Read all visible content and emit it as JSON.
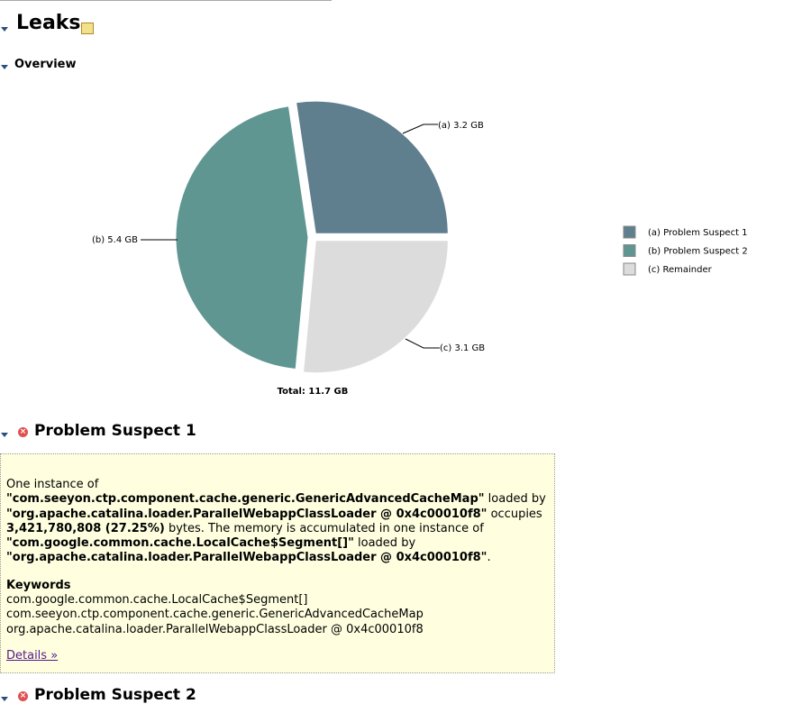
{
  "title": "Leaks",
  "overview_title": "Overview",
  "chart_data": {
    "type": "pie",
    "categories": [
      "(a)  Problem Suspect 1",
      "(b)  Problem Suspect 2",
      "(c)  Remainder"
    ],
    "values": [
      3.2,
      5.4,
      3.1
    ],
    "value_labels": [
      "(a)  3.2 GB",
      "(b)  5.4 GB",
      "(c)  3.1 GB"
    ],
    "colors": [
      "#5f7e8e",
      "#5f9692",
      "#dcdcdc"
    ],
    "total_label": "Total: 11.7 GB"
  },
  "suspects": [
    {
      "title": "Problem Suspect 1",
      "description": [
        {
          "text": "One instance of ",
          "bold": false
        },
        {
          "text": "\"com.seeyon.ctp.component.cache.generic.GenericAdvancedCacheMap\"",
          "bold": true
        },
        {
          "text": " loaded by ",
          "bold": false
        },
        {
          "text": "\"org.apache.catalina.loader.ParallelWebappClassLoader @ 0x4c00010f8\"",
          "bold": true
        },
        {
          "text": " occupies ",
          "bold": false
        },
        {
          "text": "3,421,780,808 (27.25%)",
          "bold": true
        },
        {
          "text": " bytes. The memory is accumulated in one instance of ",
          "bold": false
        },
        {
          "text": "\"com.google.common.cache.LocalCache$Segment[]\"",
          "bold": true
        },
        {
          "text": " loaded by ",
          "bold": false
        },
        {
          "text": "\"org.apache.catalina.loader.ParallelWebappClassLoader @ 0x4c00010f8\"",
          "bold": true
        },
        {
          "text": ".",
          "bold": false
        }
      ],
      "keywords_title": "Keywords",
      "keywords": [
        "com.google.common.cache.LocalCache$Segment[]",
        "com.seeyon.ctp.component.cache.generic.GenericAdvancedCacheMap",
        "org.apache.catalina.loader.ParallelWebappClassLoader @ 0x4c00010f8"
      ],
      "details_link": "Details »"
    },
    {
      "title": "Problem Suspect 2"
    }
  ]
}
